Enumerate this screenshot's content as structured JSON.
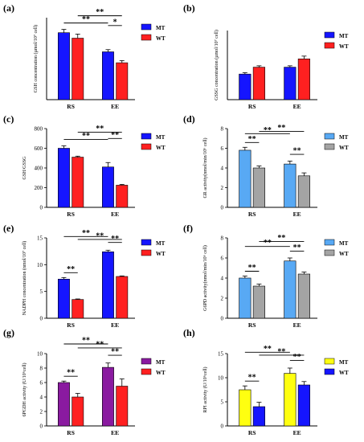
{
  "chart_data": [
    {
      "panel": "(a)",
      "type": "bar",
      "categories": [
        "RS",
        "EE"
      ],
      "ylabel": "GSH concentration (µmol/10⁷ cell)",
      "ylim": [
        0,
        3
      ],
      "yticks": [],
      "series": [
        {
          "name": "MT",
          "color": "#1515ff",
          "values": [
            2.45,
            1.75
          ],
          "errors": [
            0.12,
            0.08
          ]
        },
        {
          "name": "WT",
          "color": "#ff2020",
          "values": [
            2.25,
            1.35
          ],
          "errors": [
            0.15,
            0.08
          ]
        }
      ],
      "significance": [
        {
          "label": "**",
          "from": [
            0,
            0
          ],
          "to": [
            1,
            0
          ],
          "level": 0
        },
        {
          "label": "**",
          "from": [
            0,
            1
          ],
          "to": [
            1,
            1
          ],
          "level": 1
        },
        {
          "label": "*",
          "from": [
            1,
            0
          ],
          "to": [
            1,
            1
          ],
          "level": 2
        }
      ]
    },
    {
      "panel": "(b)",
      "type": "bar",
      "categories": [
        "RS",
        "EE"
      ],
      "ylabel": "GSSG concentration (µmol/10⁷ cell)",
      "ylim": [
        0,
        1
      ],
      "yticks": [],
      "series": [
        {
          "name": "MT",
          "color": "#1515ff",
          "values": [
            0.37,
            0.47
          ],
          "errors": [
            0.02,
            0.02
          ]
        },
        {
          "name": "WT",
          "color": "#ff2020",
          "values": [
            0.47,
            0.59
          ],
          "errors": [
            0.02,
            0.04
          ]
        }
      ],
      "significance": []
    },
    {
      "panel": "(c)",
      "type": "bar",
      "categories": [
        "RS",
        "EE"
      ],
      "ylabel": "GSH/GSSG",
      "ylim": [
        0,
        800
      ],
      "yticks": [
        0,
        200,
        400,
        600,
        800
      ],
      "series": [
        {
          "name": "MT",
          "color": "#1515ff",
          "values": [
            600,
            410
          ],
          "errors": [
            25,
            45
          ]
        },
        {
          "name": "WT",
          "color": "#ff2020",
          "values": [
            510,
            225
          ],
          "errors": [
            10,
            8
          ]
        }
      ],
      "significance": [
        {
          "label": "**",
          "from": [
            0,
            0
          ],
          "to": [
            1,
            0
          ],
          "level": 0
        },
        {
          "label": "**",
          "from": [
            0,
            1
          ],
          "to": [
            1,
            1
          ],
          "level": 1
        },
        {
          "label": "**",
          "from": [
            1,
            0
          ],
          "to": [
            1,
            1
          ],
          "level": 2
        }
      ]
    },
    {
      "panel": "(d)",
      "type": "bar",
      "categories": [
        "RS",
        "EE"
      ],
      "ylabel": "GR activity(nmol/min/10⁶ cell)",
      "ylim": [
        0,
        8
      ],
      "yticks": [
        0,
        2,
        4,
        6,
        8
      ],
      "series": [
        {
          "name": "MT",
          "color": "#58a9f4",
          "values": [
            5.8,
            4.4
          ],
          "errors": [
            0.3,
            0.3
          ]
        },
        {
          "name": "WT",
          "color": "#a4a4a4",
          "values": [
            4.0,
            3.2
          ],
          "errors": [
            0.2,
            0.3
          ]
        }
      ],
      "significance": [
        {
          "label": "**",
          "from": [
            0,
            0
          ],
          "to": [
            0,
            1
          ],
          "level": 0
        },
        {
          "label": "**",
          "from": [
            0,
            0
          ],
          "to": [
            1,
            0
          ],
          "level": 1
        },
        {
          "label": "**",
          "from": [
            0,
            1
          ],
          "to": [
            1,
            1
          ],
          "level": 1.3
        },
        {
          "label": "**",
          "from": [
            1,
            0
          ],
          "to": [
            1,
            1
          ],
          "level": 0.2
        }
      ]
    },
    {
      "panel": "(e)",
      "type": "bar",
      "categories": [
        "RS",
        "EE"
      ],
      "ylabel": "NADPH concentration (nmol/10⁷ cell)",
      "ylim": [
        0,
        15
      ],
      "yticks": [
        0,
        5,
        10,
        15
      ],
      "series": [
        {
          "name": "MT",
          "color": "#1515ff",
          "values": [
            7.3,
            12.4
          ],
          "errors": [
            0.3,
            0.3
          ]
        },
        {
          "name": "WT",
          "color": "#ff2020",
          "values": [
            3.5,
            7.8
          ],
          "errors": [
            0.1,
            0.1
          ]
        }
      ],
      "significance": [
        {
          "label": "**",
          "from": [
            0,
            0
          ],
          "to": [
            0,
            1
          ],
          "level": 0
        },
        {
          "label": "**",
          "from": [
            0,
            0
          ],
          "to": [
            1,
            0
          ],
          "level": 1
        },
        {
          "label": "**",
          "from": [
            0,
            1
          ],
          "to": [
            1,
            1
          ],
          "level": 0.6
        },
        {
          "label": "**",
          "from": [
            1,
            0
          ],
          "to": [
            1,
            1
          ],
          "level": 0.3
        }
      ]
    },
    {
      "panel": "(f)",
      "type": "bar",
      "categories": [
        "RS",
        "EE"
      ],
      "ylabel": "G6PD activity(nmol/min/10⁶ cell)",
      "ylim": [
        0,
        8
      ],
      "yticks": [
        0,
        2,
        4,
        6,
        8
      ],
      "series": [
        {
          "name": "MT",
          "color": "#58a9f4",
          "values": [
            4.0,
            5.7
          ],
          "errors": [
            0.2,
            0.3
          ]
        },
        {
          "name": "WT",
          "color": "#a4a4a4",
          "values": [
            3.2,
            4.4
          ],
          "errors": [
            0.2,
            0.2
          ]
        }
      ],
      "significance": [
        {
          "label": "**",
          "from": [
            0,
            0
          ],
          "to": [
            0,
            1
          ],
          "level": 0
        },
        {
          "label": "**",
          "from": [
            0,
            0
          ],
          "to": [
            1,
            0
          ],
          "level": 0.7
        },
        {
          "label": "**",
          "from": [
            0,
            1
          ],
          "to": [
            1,
            1
          ],
          "level": 1.4
        },
        {
          "label": "**",
          "from": [
            1,
            0
          ],
          "to": [
            1,
            1
          ],
          "level": 0.2
        }
      ]
    },
    {
      "panel": "(g)",
      "type": "bar",
      "categories": [
        "RS",
        "EE"
      ],
      "ylabel": "6PGDH activity (U/10⁶cell)",
      "ylim": [
        0,
        10
      ],
      "yticks": [
        0,
        2,
        4,
        6,
        8,
        10
      ],
      "series": [
        {
          "name": "MT",
          "color": "#8a1aa0",
          "values": [
            6.0,
            8.1
          ],
          "errors": [
            0.2,
            0.6
          ]
        },
        {
          "name": "WT",
          "color": "#ff2020",
          "values": [
            4.0,
            5.5
          ],
          "errors": [
            0.5,
            1.0
          ]
        }
      ],
      "significance": [
        {
          "label": "**",
          "from": [
            0,
            0
          ],
          "to": [
            0,
            1
          ],
          "level": 0
        },
        {
          "label": "**",
          "from": [
            0,
            0
          ],
          "to": [
            1,
            0
          ],
          "level": 1.8
        },
        {
          "label": "**",
          "from": [
            0,
            1
          ],
          "to": [
            1,
            1
          ],
          "level": 1.2
        },
        {
          "label": "**",
          "from": [
            1,
            0
          ],
          "to": [
            1,
            1
          ],
          "level": 0.3
        }
      ]
    },
    {
      "panel": "(h)",
      "type": "bar",
      "categories": [
        "RS",
        "EE"
      ],
      "ylabel": "RPI activity (U/10⁶cell)",
      "ylim": [
        0,
        15
      ],
      "yticks": [
        0,
        5,
        10,
        15
      ],
      "series": [
        {
          "name": "MT",
          "color": "#ffff10",
          "values": [
            7.5,
            10.9
          ],
          "errors": [
            0.8,
            1.1
          ]
        },
        {
          "name": "WT",
          "color": "#1515ff",
          "values": [
            4.0,
            8.5
          ],
          "errors": [
            0.9,
            0.7
          ]
        }
      ],
      "significance": [
        {
          "label": "**",
          "from": [
            0,
            0
          ],
          "to": [
            0,
            1
          ],
          "level": 0
        },
        {
          "label": "**",
          "from": [
            0,
            0
          ],
          "to": [
            1,
            0
          ],
          "level": 1.3
        },
        {
          "label": "**",
          "from": [
            0,
            1
          ],
          "to": [
            1,
            1
          ],
          "level": 0.9
        },
        {
          "label": "**",
          "from": [
            1,
            0
          ],
          "to": [
            1,
            1
          ],
          "level": 0.3
        }
      ]
    }
  ]
}
